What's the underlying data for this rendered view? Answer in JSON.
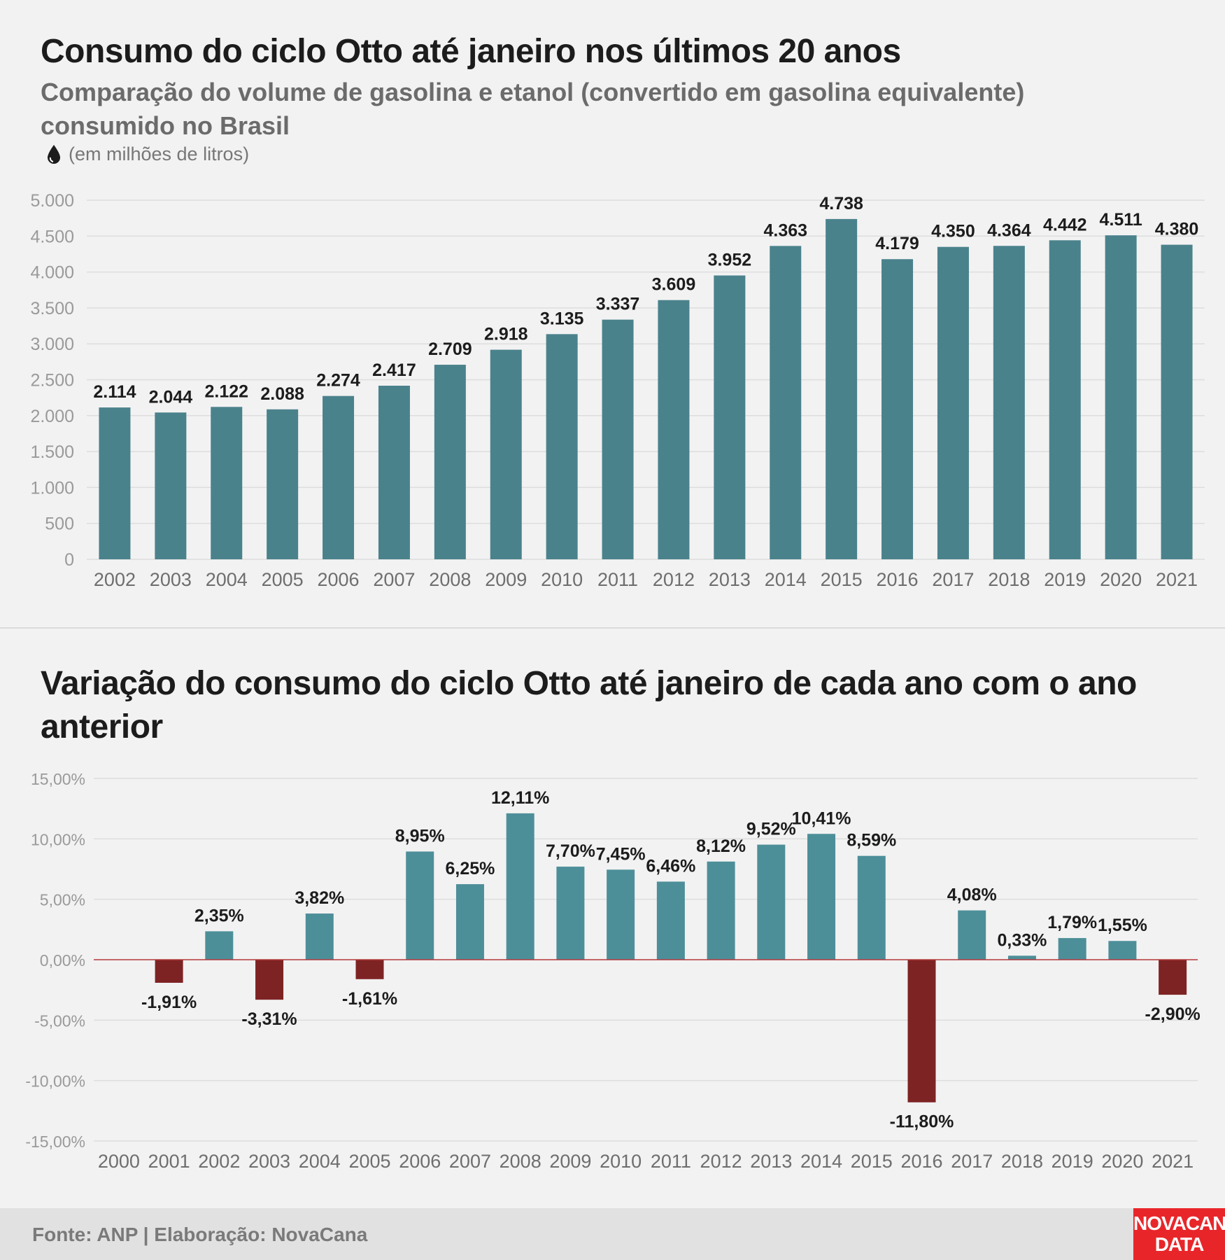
{
  "header": {
    "title": "Consumo do ciclo Otto até janeiro nos últimos 20 anos",
    "subtitle": "Comparação do volume de gasolina e etanol (convertido em gasolina equivalente) consumido no Brasil",
    "unit_note": "(em milhões de litros)",
    "unit_icon": "drop-icon"
  },
  "section2": {
    "title": "Variação do consumo do ciclo Otto até janeiro de cada ano com o ano anterior"
  },
  "footer": {
    "source": "Fonte: ANP | Elaboração: NovaCana",
    "logo_line1": "NOVACANA",
    "logo_line2": "DATA"
  },
  "colors": {
    "bar_primary": "#4a828c",
    "bar_positive": "#4d8f99",
    "bar_negative": "#7e2324",
    "zero_line": "#b5373a"
  },
  "chart_data": [
    {
      "type": "bar",
      "title": "Consumo do ciclo Otto até janeiro nos últimos 20 anos",
      "categories": [
        "2002",
        "2003",
        "2004",
        "2005",
        "2006",
        "2007",
        "2008",
        "2009",
        "2010",
        "2011",
        "2012",
        "2013",
        "2014",
        "2015",
        "2016",
        "2017",
        "2018",
        "2019",
        "2020",
        "2021"
      ],
      "values": [
        2114,
        2044,
        2122,
        2088,
        2274,
        2417,
        2709,
        2918,
        3135,
        3337,
        3609,
        3952,
        4363,
        4738,
        4179,
        4350,
        4364,
        4442,
        4511,
        4380
      ],
      "data_labels": [
        "2.114",
        "2.044",
        "2.122",
        "2.088",
        "2.274",
        "2.417",
        "2.709",
        "2.918",
        "3.135",
        "3.337",
        "3.609",
        "3.952",
        "4.363",
        "4.738",
        "4.179",
        "4.350",
        "4.364",
        "4.442",
        "4.511",
        "4.380"
      ],
      "ylim": [
        0,
        5000
      ],
      "yticks": [
        0,
        500,
        1000,
        1500,
        2000,
        2500,
        3000,
        3500,
        4000,
        4500,
        5000
      ],
      "ytick_labels": [
        "0",
        "500",
        "1.000",
        "1.500",
        "2.000",
        "2.500",
        "3.000",
        "3.500",
        "4.000",
        "4.500",
        "5.000"
      ],
      "grid": true,
      "legend": "none"
    },
    {
      "type": "bar",
      "title": "Variação do consumo do ciclo Otto até janeiro de cada ano com o ano anterior",
      "categories": [
        "2000",
        "2001",
        "2002",
        "2003",
        "2004",
        "2005",
        "2006",
        "2007",
        "2008",
        "2009",
        "2010",
        "2011",
        "2012",
        "2013",
        "2014",
        "2015",
        "2016",
        "2017",
        "2018",
        "2019",
        "2020",
        "2021"
      ],
      "values": [
        null,
        -1.91,
        2.35,
        -3.31,
        3.82,
        -1.61,
        8.95,
        6.25,
        12.11,
        7.7,
        7.45,
        6.46,
        8.12,
        9.52,
        10.41,
        8.59,
        -11.8,
        4.08,
        0.33,
        1.79,
        1.55,
        -2.9
      ],
      "data_labels": [
        "",
        "-1,91%",
        "2,35%",
        "-3,31%",
        "3,82%",
        "-1,61%",
        "8,95%",
        "6,25%",
        "12,11%",
        "7,70%",
        "7,45%",
        "6,46%",
        "8,12%",
        "9,52%",
        "10,41%",
        "8,59%",
        "-11,80%",
        "4,08%",
        "0,33%",
        "1,79%",
        "1,55%",
        "-2,90%"
      ],
      "ylim": [
        -15,
        15
      ],
      "yticks": [
        -15,
        -10,
        -5,
        0,
        5,
        10,
        15
      ],
      "ytick_labels": [
        "-15,00%",
        "-10,00%",
        "-5,00%",
        "0,00%",
        "5,00%",
        "10,00%",
        "15,00%"
      ],
      "grid": true,
      "legend": "none"
    }
  ]
}
